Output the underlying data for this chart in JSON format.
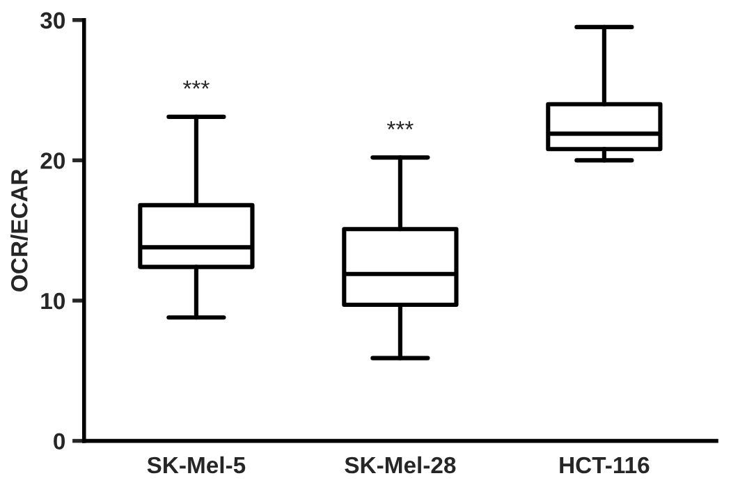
{
  "chart_data": {
    "type": "box",
    "ylabel": "OCR/ECAR",
    "categories": [
      "SK-Mel-5",
      "SK-Mel-28",
      "HCT-116"
    ],
    "boxes": [
      {
        "low": 8.8,
        "q1": 12.4,
        "median": 13.8,
        "q3": 16.8,
        "high": 23.1
      },
      {
        "low": 5.9,
        "q1": 9.7,
        "median": 11.9,
        "q3": 15.1,
        "high": 20.2
      },
      {
        "low": 20.0,
        "q1": 20.8,
        "median": 21.9,
        "q3": 24.0,
        "high": 29.5
      }
    ],
    "color": "#000000",
    "ylim": [
      0,
      30
    ],
    "yticks": [
      0,
      10,
      20,
      30
    ],
    "grid": false,
    "annotations": [
      "***",
      "***"
    ]
  }
}
